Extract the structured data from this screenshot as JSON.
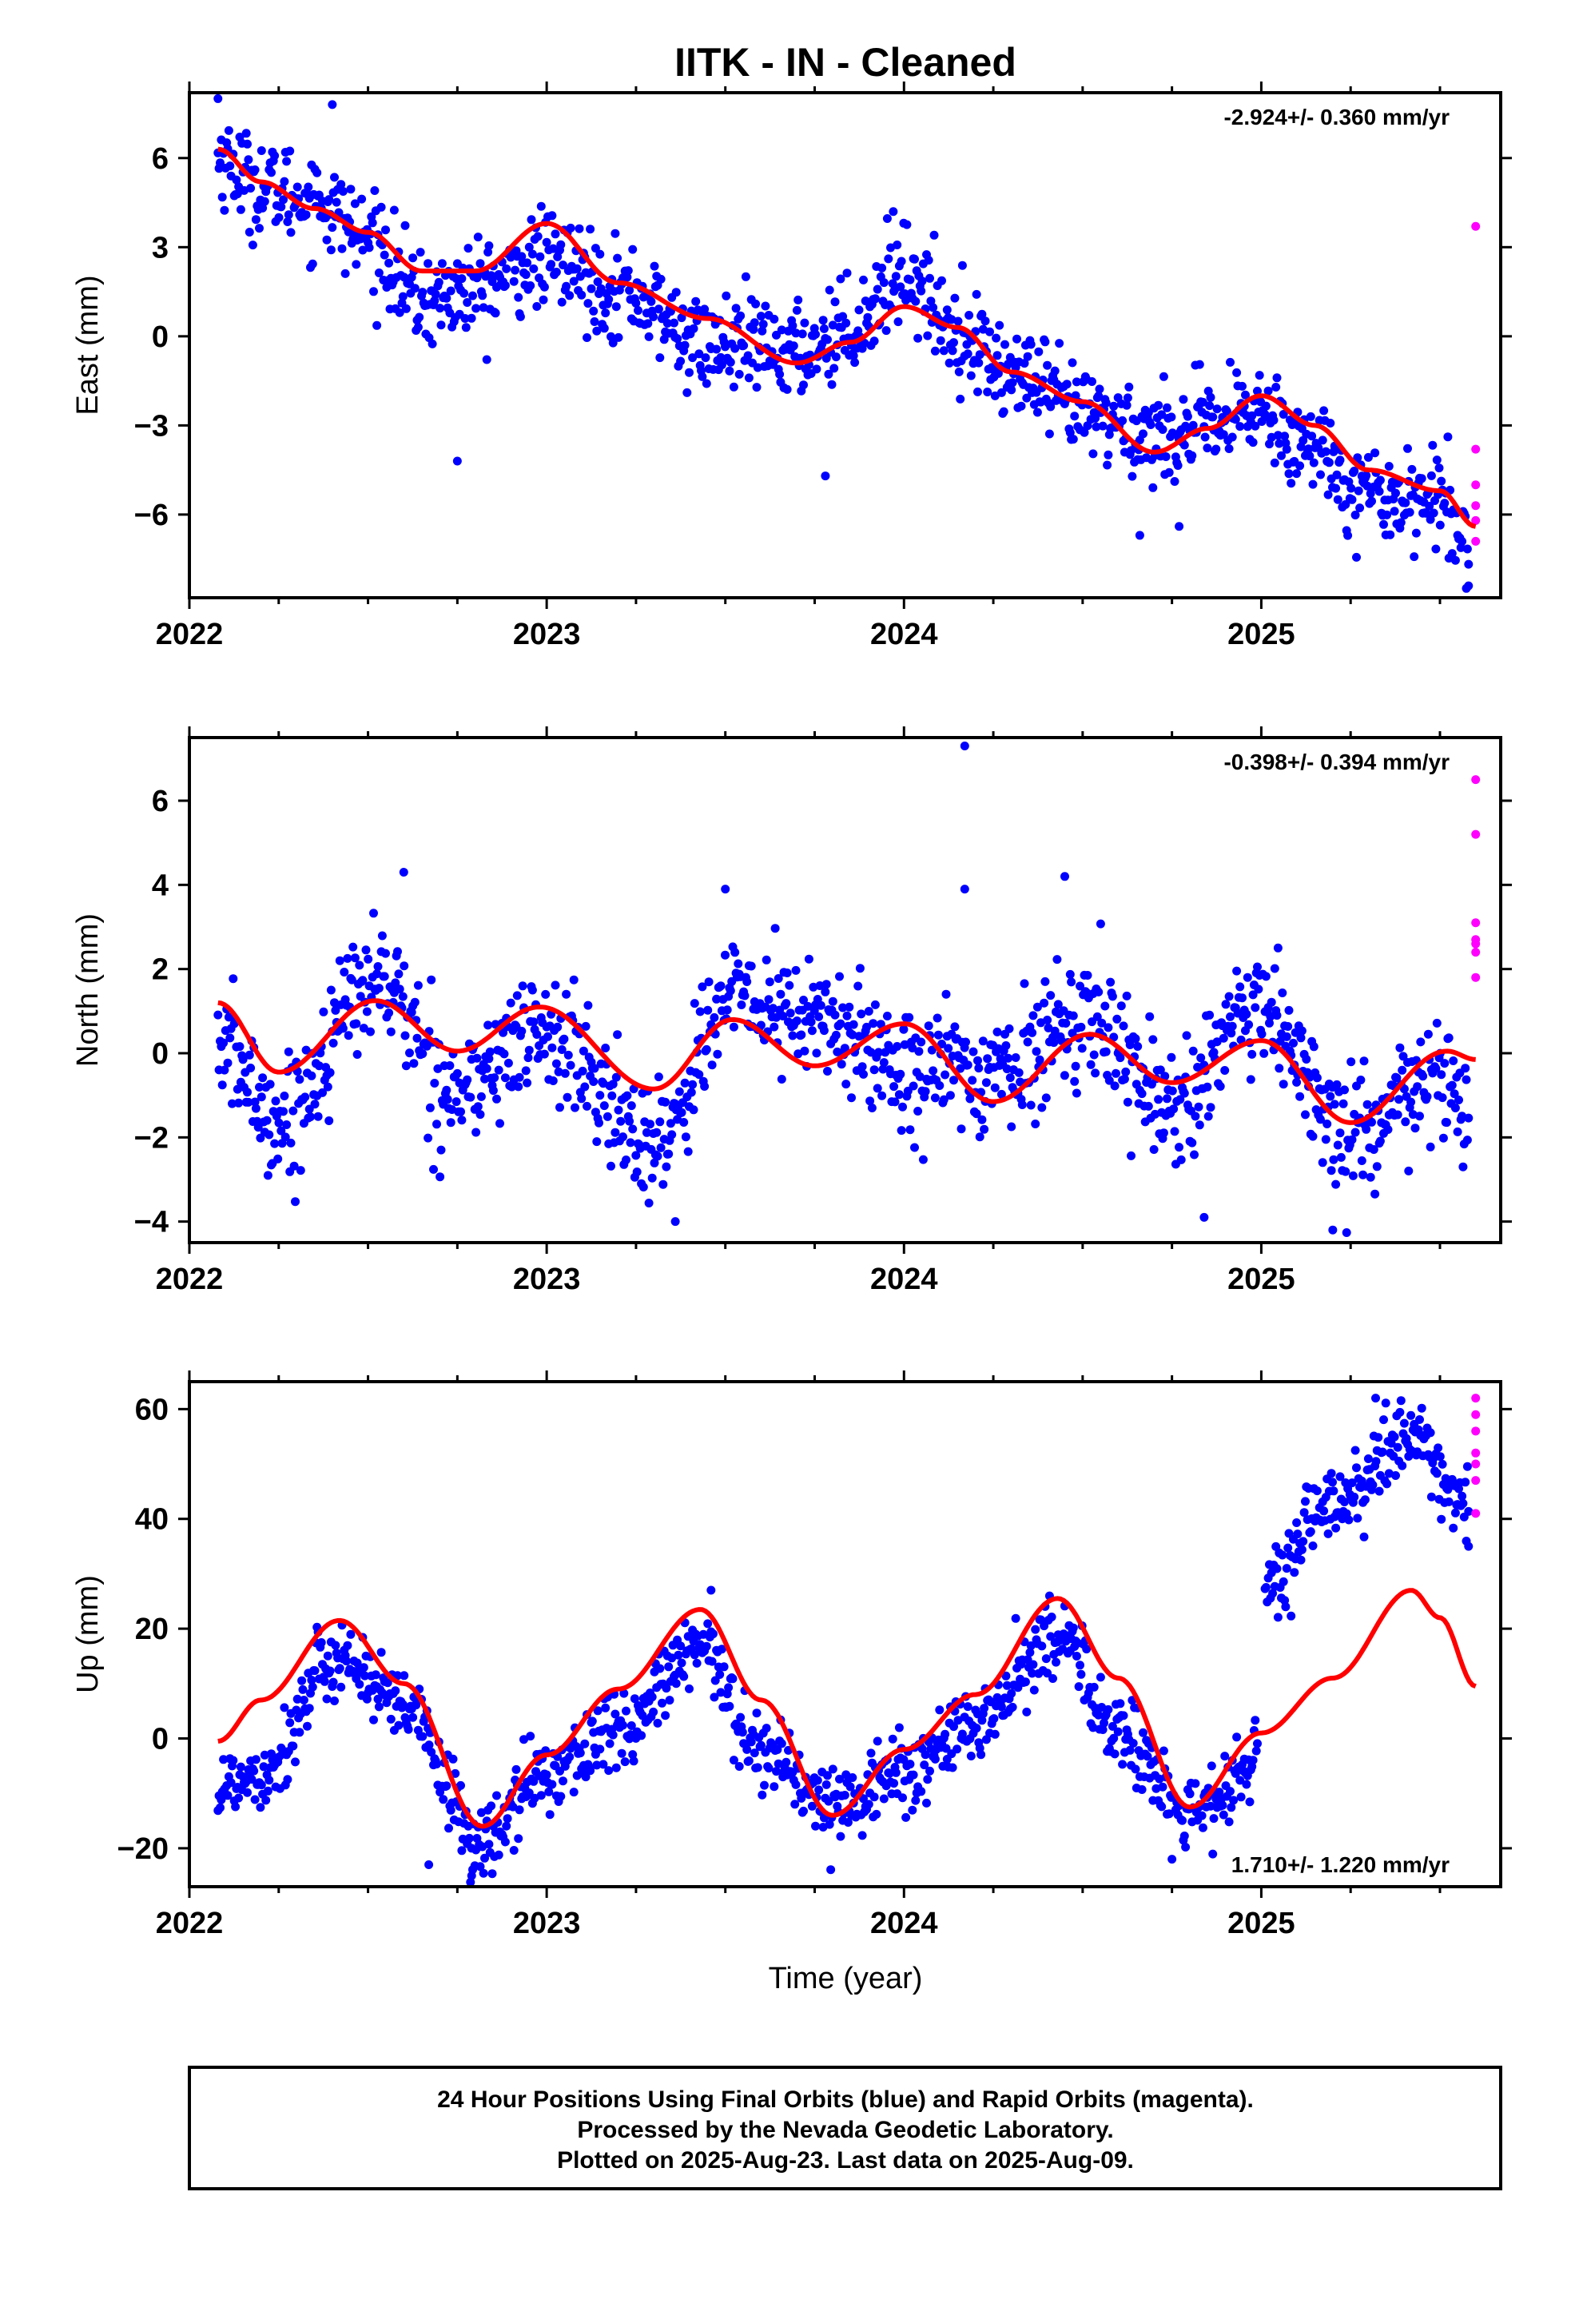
{
  "title": "IITK  - IN - Cleaned",
  "xlabel": "Time (year)",
  "footer": {
    "line1": "24 Hour Positions Using Final Orbits (blue) and Rapid Orbits (magenta).",
    "line2": "Processed by the Nevada Geodetic Laboratory.",
    "line3": "Plotted on 2025-Aug-23. Last data on 2025-Aug-09."
  },
  "colors": {
    "final": "#0000ff",
    "rapid": "#ff00ff",
    "fit": "#ff0000",
    "frame": "#000000"
  },
  "chart_data": [
    {
      "type": "scatter",
      "id": "east",
      "ylabel": "East (mm)",
      "rate_label": "-2.924+/- 0.360 mm/yr",
      "rate_position": "top-right",
      "xlim": [
        2022.0,
        2025.67
      ],
      "ylim": [
        -8.8,
        8.2
      ],
      "xticks": [
        2022,
        2023,
        2024,
        2025
      ],
      "yticks": [
        -6,
        -3,
        0,
        3,
        6
      ],
      "ytick_labels": [
        "−6",
        "−3",
        "0",
        "3",
        "6"
      ],
      "fit": {
        "x": [
          2022.08,
          2022.2,
          2022.35,
          2022.5,
          2022.65,
          2022.8,
          2023.0,
          2023.2,
          2023.45,
          2023.7,
          2023.85,
          2024.0,
          2024.15,
          2024.3,
          2024.5,
          2024.7,
          2024.85,
          2025.0,
          2025.15,
          2025.3,
          2025.5,
          2025.6
        ],
        "y": [
          6.3,
          5.2,
          4.3,
          3.5,
          2.2,
          2.2,
          3.8,
          1.8,
          0.6,
          -0.9,
          -0.2,
          1.0,
          0.3,
          -1.2,
          -2.2,
          -3.9,
          -3.1,
          -2.0,
          -3.0,
          -4.5,
          -5.2,
          -6.4
        ]
      },
      "final_trend": {
        "x": [
          2022.08,
          2022.2,
          2022.35,
          2022.5,
          2022.65,
          2022.8,
          2023.0,
          2023.2,
          2023.45,
          2023.7,
          2023.85,
          2024.0,
          2024.15,
          2024.3,
          2024.5,
          2024.7,
          2024.85,
          2025.0,
          2025.15,
          2025.3,
          2025.5,
          2025.58
        ],
        "y": [
          6.0,
          5.0,
          4.6,
          3.3,
          1.2,
          1.6,
          2.6,
          1.6,
          -0.3,
          -0.5,
          0.3,
          2.2,
          0.2,
          -1.3,
          -2.6,
          -3.3,
          -3.1,
          -2.5,
          -3.8,
          -5.3,
          -5.5,
          -6.8
        ]
      },
      "final_spread": 1.0,
      "final_count": 1150,
      "final_outliers": [
        [
          2022.75,
          -4.2
        ],
        [
          2023.78,
          -4.7
        ],
        [
          2024.66,
          -6.7
        ],
        [
          2024.77,
          -6.4
        ],
        [
          2022.4,
          7.8
        ],
        [
          2022.08,
          8.0
        ],
        [
          2023.97,
          4.2
        ],
        [
          2025.58,
          -8.4
        ]
      ],
      "rapid": {
        "x": [
          2025.6,
          2025.6,
          2025.6,
          2025.6,
          2025.6,
          2025.6
        ],
        "y": [
          3.7,
          -3.8,
          -5.0,
          -5.7,
          -6.2,
          -6.9
        ]
      }
    },
    {
      "type": "scatter",
      "id": "north",
      "ylabel": "North (mm)",
      "rate_label": "-0.398+/- 0.394 mm/yr",
      "rate_position": "top-right",
      "xlim": [
        2022.0,
        2025.67
      ],
      "ylim": [
        -4.5,
        7.5
      ],
      "xticks": [
        2022,
        2023,
        2024,
        2025
      ],
      "yticks": [
        -4,
        -2,
        0,
        2,
        4,
        6
      ],
      "ytick_labels": [
        "−4",
        "−2",
        "0",
        "2",
        "4",
        "6"
      ],
      "fit": {
        "x": [
          2022.08,
          2022.25,
          2022.52,
          2022.75,
          2022.98,
          2023.3,
          2023.52,
          2023.75,
          2024.0,
          2024.25,
          2024.52,
          2024.75,
          2025.0,
          2025.25,
          2025.52,
          2025.6
        ],
        "y": [
          1.2,
          -0.45,
          1.25,
          0.05,
          1.1,
          -0.85,
          0.8,
          -0.3,
          0.7,
          -1.15,
          0.45,
          -0.7,
          0.3,
          -1.65,
          0.05,
          -0.15
        ]
      },
      "final_trend": {
        "x": [
          2022.08,
          2022.25,
          2022.52,
          2022.75,
          2022.98,
          2023.3,
          2023.52,
          2023.75,
          2024.0,
          2024.25,
          2024.52,
          2024.75,
          2025.0,
          2025.25,
          2025.52,
          2025.58
        ],
        "y": [
          0.2,
          -1.6,
          1.8,
          -0.9,
          0.5,
          -2.1,
          1.3,
          0.8,
          -0.3,
          -0.5,
          0.9,
          -1.2,
          0.9,
          -2.0,
          -0.6,
          -2.0
        ]
      },
      "final_spread": 0.9,
      "final_count": 1150,
      "final_outliers": [
        [
          2024.17,
          7.3
        ],
        [
          2022.6,
          4.3
        ],
        [
          2024.45,
          4.2
        ],
        [
          2023.5,
          3.9
        ],
        [
          2024.17,
          3.9
        ],
        [
          2023.36,
          -4.0
        ],
        [
          2025.2,
          -4.2
        ],
        [
          2024.84,
          -3.9
        ]
      ],
      "rapid": {
        "x": [
          2025.6,
          2025.6,
          2025.6,
          2025.6,
          2025.6,
          2025.6,
          2025.6
        ],
        "y": [
          6.5,
          5.2,
          3.1,
          2.7,
          2.6,
          2.4,
          1.8
        ]
      }
    },
    {
      "type": "scatter",
      "id": "up",
      "ylabel": "Up (mm)",
      "rate_label": "1.710+/- 1.220 mm/yr",
      "rate_position": "bottom-right",
      "xlim": [
        2022.0,
        2025.67
      ],
      "ylim": [
        -27,
        65
      ],
      "xticks": [
        2022,
        2023,
        2024,
        2025
      ],
      "yticks": [
        -20,
        0,
        20,
        40,
        60
      ],
      "ytick_labels": [
        "−20",
        "0",
        "20",
        "40",
        "60"
      ],
      "fit": {
        "x": [
          2022.08,
          2022.2,
          2022.42,
          2022.6,
          2022.82,
          2023.0,
          2023.2,
          2023.43,
          2023.6,
          2023.8,
          2024.0,
          2024.2,
          2024.43,
          2024.6,
          2024.8,
          2025.0,
          2025.2,
          2025.42,
          2025.5,
          2025.6
        ],
        "y": [
          -0.5,
          7.0,
          21.5,
          10.0,
          -16.0,
          -3.0,
          9.0,
          23.5,
          7.0,
          -14.0,
          -2.0,
          8.0,
          25.5,
          11.0,
          -12.5,
          1.0,
          11.0,
          27.0,
          22.0,
          9.5
        ]
      },
      "final_trend": {
        "x": [
          2022.08,
          2022.2,
          2022.42,
          2022.6,
          2022.82,
          2023.0,
          2023.2,
          2023.43,
          2023.6,
          2023.8,
          2024.0,
          2024.2,
          2024.43,
          2024.6,
          2024.8,
          2024.99,
          2025.0,
          2025.2,
          2025.42,
          2025.58
        ],
        "y": [
          -9.0,
          -6.0,
          15.0,
          5.0,
          -19.0,
          -6.0,
          1.0,
          16.0,
          -2.0,
          -12.0,
          -6.0,
          2.0,
          19.0,
          1.0,
          -14.0,
          -5.0,
          27.0,
          42.0,
          55.0,
          42.0
        ]
      },
      "final_spread": 4.5,
      "final_count": 1150,
      "final_outliers": [
        [
          2022.67,
          -23.0
        ],
        [
          2022.79,
          -25.0
        ],
        [
          2023.46,
          27.0
        ],
        [
          2024.75,
          -22.0
        ],
        [
          2025.32,
          62.0
        ],
        [
          2025.58,
          35.0
        ]
      ],
      "rapid": {
        "x": [
          2025.6,
          2025.6,
          2025.6,
          2025.6,
          2025.6,
          2025.6,
          2025.6
        ],
        "y": [
          62.0,
          59.0,
          56.0,
          52.0,
          50.0,
          47.0,
          41.0
        ]
      }
    }
  ]
}
